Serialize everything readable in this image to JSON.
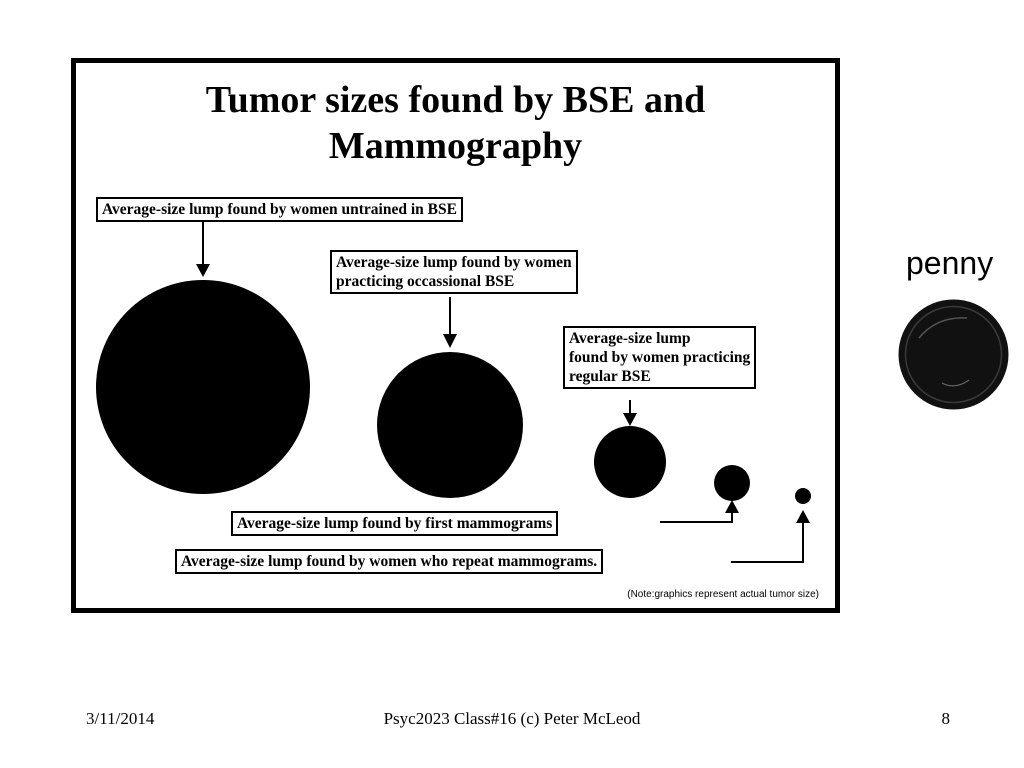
{
  "figure": {
    "title_lines": [
      "Tumor sizes found by BSE and",
      "Mammography"
    ],
    "note": "(Note:graphics represent actual tumor size)",
    "lumps": [
      {
        "label_lines": [
          "Average-size lump found by women untrained in BSE"
        ],
        "arrow_direction": "down",
        "relative_size": 1.0
      },
      {
        "label_lines": [
          "Average-size lump found by women",
          "practicing occassional BSE"
        ],
        "arrow_direction": "down",
        "relative_size": 0.68
      },
      {
        "label_lines": [
          "Average-size lump",
          "found by women practicing",
          "regular BSE"
        ],
        "arrow_direction": "down",
        "relative_size": 0.33
      },
      {
        "label_lines": [
          "Average-size lump found by first mammograms"
        ],
        "arrow_direction": "up",
        "relative_size": 0.17
      },
      {
        "label_lines": [
          "Average-size lump found by women who repeat mammograms."
        ],
        "arrow_direction": "up",
        "relative_size": 0.08
      }
    ]
  },
  "penny": {
    "label": "penny"
  },
  "footer": {
    "date": "3/11/2014",
    "course": "Psyc2023 Class#16 (c) Peter McLeod",
    "page": "8"
  },
  "colors": {
    "background": "#ffffff",
    "ink": "#000000",
    "penny_fill": "#111111"
  }
}
